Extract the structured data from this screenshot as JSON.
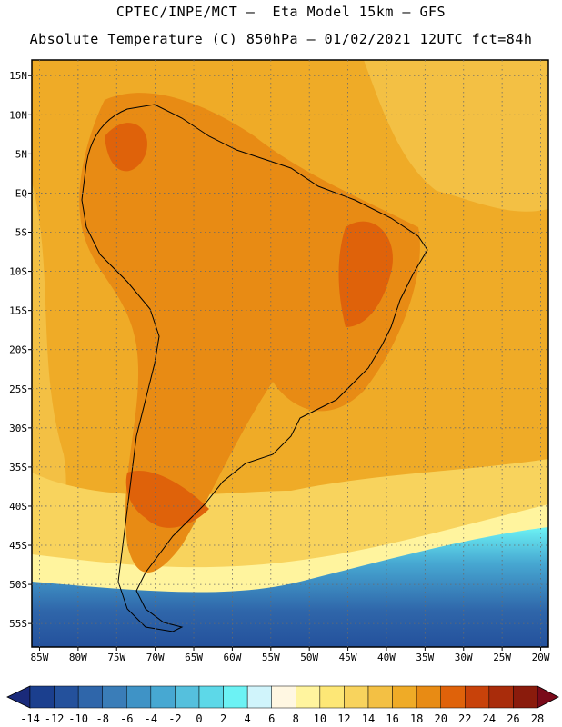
{
  "header": {
    "line1": "CPTEC/INPE/MCT –  Eta Model 15km – GFS",
    "line2": "Absolute Temperature (C) 850hPa – 01/02/2021 12UTC fct=84h"
  },
  "map": {
    "lon_range": [
      -86,
      -19
    ],
    "lat_range": [
      -58,
      17
    ],
    "lat_labels": [
      "15N",
      "10N",
      "5N",
      "EQ",
      "5S",
      "10S",
      "15S",
      "20S",
      "25S",
      "30S",
      "35S",
      "40S",
      "45S",
      "50S",
      "55S"
    ],
    "lat_values": [
      15,
      10,
      5,
      0,
      -5,
      -10,
      -15,
      -20,
      -25,
      -30,
      -35,
      -40,
      -45,
      -50,
      -55
    ],
    "lon_labels": [
      "85W",
      "80W",
      "75W",
      "70W",
      "65W",
      "60W",
      "55W",
      "50W",
      "45W",
      "40W",
      "35W",
      "30W",
      "25W",
      "20W"
    ],
    "lon_values": [
      -85,
      -80,
      -75,
      -70,
      -65,
      -60,
      -55,
      -50,
      -45,
      -40,
      -35,
      -30,
      -25,
      -20
    ]
  },
  "colorbar": {
    "labels": [
      "-14",
      "-12",
      "-10",
      "-8",
      "-6",
      "-4",
      "-2",
      "0",
      "2",
      "4",
      "6",
      "8",
      "10",
      "12",
      "14",
      "16",
      "18",
      "20",
      "22",
      "24",
      "26",
      "28"
    ],
    "colors": [
      "#1b3f8e",
      "#24519c",
      "#2f66aa",
      "#3a7db8",
      "#3f93c6",
      "#47a8d2",
      "#55c0dd",
      "#5dd8e8",
      "#6cf2f4",
      "#d0f4fb",
      "#fff7e2",
      "#fff49e",
      "#fde776",
      "#f8d35d",
      "#f3c044",
      "#efab27",
      "#e88b14",
      "#df620a",
      "#c8420a",
      "#a92c0b",
      "#8a1b0c"
    ],
    "low_color": "#1a2a7a",
    "high_color": "#7a0a1a"
  }
}
